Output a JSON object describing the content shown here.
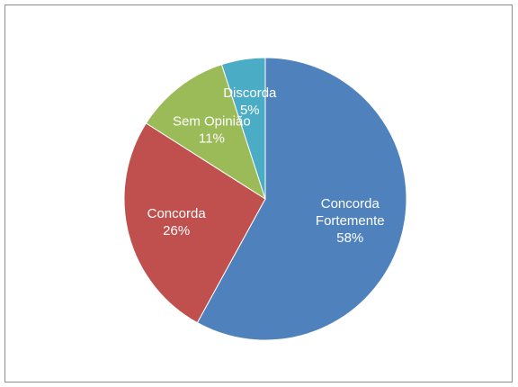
{
  "chart_data": {
    "type": "pie",
    "title": "",
    "categories": [
      "Concorda Fortemente",
      "Concorda",
      "Sem Opinião",
      "Discorda"
    ],
    "values": [
      58,
      26,
      11,
      5
    ],
    "value_labels": [
      "58%",
      "26%",
      "11%",
      "5%"
    ],
    "colors": [
      "#4F81BD",
      "#C0504D",
      "#9BBB59",
      "#4BACC6"
    ],
    "legend": "none",
    "start_angle": "12 o'clock",
    "direction": "clockwise"
  }
}
